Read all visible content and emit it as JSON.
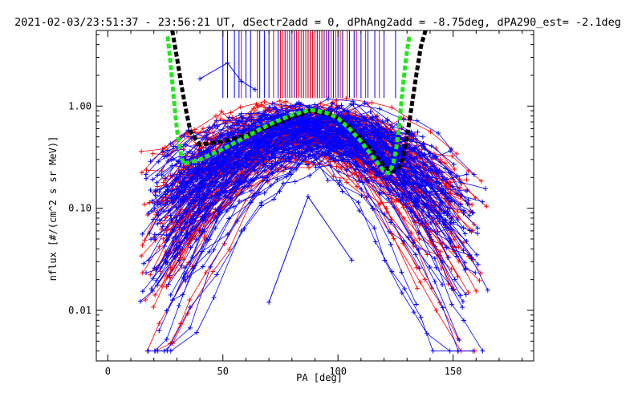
{
  "chart_data": {
    "type": "scatter",
    "title": "2021-02-03/23:51:37 - 23:56:21 UT, dSectr2add = 0, dPhAng2add = -8.75deg, dPA290_est=  -2.1deg",
    "xlabel": "PA [deg]",
    "ylabel": "nflux [#/(cm^2 s sr MeV)]",
    "xlim": [
      -5,
      185
    ],
    "ylim": [
      0.0032,
      5.5
    ],
    "yscale": "log",
    "x_ticks": [
      0,
      50,
      100,
      150
    ],
    "x_tick_labels": [
      "0",
      "50",
      "100",
      "150"
    ],
    "y_ticks": [
      0.01,
      0.1,
      1.0
    ],
    "y_tick_labels": [
      "0.01",
      "0.10",
      "1.00"
    ],
    "grid": false,
    "colors": {
      "red": "#ff0000",
      "blue": "#0000ff",
      "black": "#000000",
      "green": "#22e61e"
    },
    "series": [
      {
        "color": "red",
        "peak_pa": 88,
        "peak_flux": 0.9,
        "count": 80
      },
      {
        "color": "blue",
        "peak_pa": 90,
        "peak_flux": 0.9,
        "count": 110
      },
      {
        "color": "black",
        "x": [
          28,
          30,
          32,
          34,
          36,
          40,
          50,
          60,
          70,
          80,
          88,
          95,
          100,
          105,
          110,
          115,
          120,
          123,
          126,
          128,
          130,
          132,
          134,
          136,
          138
        ],
        "y": [
          5.5,
          3.0,
          1.6,
          0.9,
          0.55,
          0.42,
          0.45,
          0.52,
          0.63,
          0.78,
          0.9,
          0.85,
          0.76,
          0.62,
          0.48,
          0.36,
          0.26,
          0.23,
          0.24,
          0.3,
          0.5,
          1.0,
          2.0,
          3.8,
          5.5
        ]
      },
      {
        "color": "green",
        "x": [
          26,
          27,
          28,
          29,
          30,
          31,
          32,
          33,
          35,
          40,
          50,
          60,
          70,
          80,
          88,
          95,
          100,
          105,
          110,
          115,
          120,
          122,
          124,
          125,
          126,
          127,
          128,
          129,
          130,
          131
        ],
        "y": [
          4.8,
          3.0,
          1.7,
          1.0,
          0.6,
          0.42,
          0.32,
          0.27,
          0.28,
          0.3,
          0.38,
          0.5,
          0.66,
          0.82,
          0.92,
          0.86,
          0.76,
          0.6,
          0.45,
          0.32,
          0.23,
          0.22,
          0.27,
          0.35,
          0.5,
          0.8,
          1.4,
          2.3,
          3.5,
          4.8
        ]
      },
      {
        "name": "",
        "color": "blue",
        "type": "outlier",
        "x": [
          40,
          52,
          58,
          64
        ],
        "y": [
          1.85,
          2.65,
          1.75,
          1.45
        ]
      },
      {
        "name": "",
        "color": "blue",
        "type": "outlier",
        "x": [
          70,
          87,
          106
        ],
        "y": [
          0.012,
          0.13,
          0.031
        ]
      }
    ],
    "vertical_ticks": {
      "y_from": 1.2,
      "y_to": 5.5,
      "red_x": [
        58,
        65,
        72,
        75,
        76,
        78,
        80,
        82,
        83,
        84,
        85,
        86,
        87,
        88,
        89,
        90,
        91,
        92,
        93,
        95,
        97,
        99,
        101,
        104,
        108,
        112,
        118
      ],
      "blue_x": [
        50,
        52,
        55,
        57,
        60,
        62,
        66,
        68,
        70,
        74,
        77,
        79,
        81,
        83,
        85,
        86,
        87,
        88,
        89,
        90,
        91,
        92,
        93,
        94,
        95,
        96,
        98,
        100,
        102,
        105,
        107,
        110,
        113,
        116,
        120,
        125
      ]
    }
  }
}
